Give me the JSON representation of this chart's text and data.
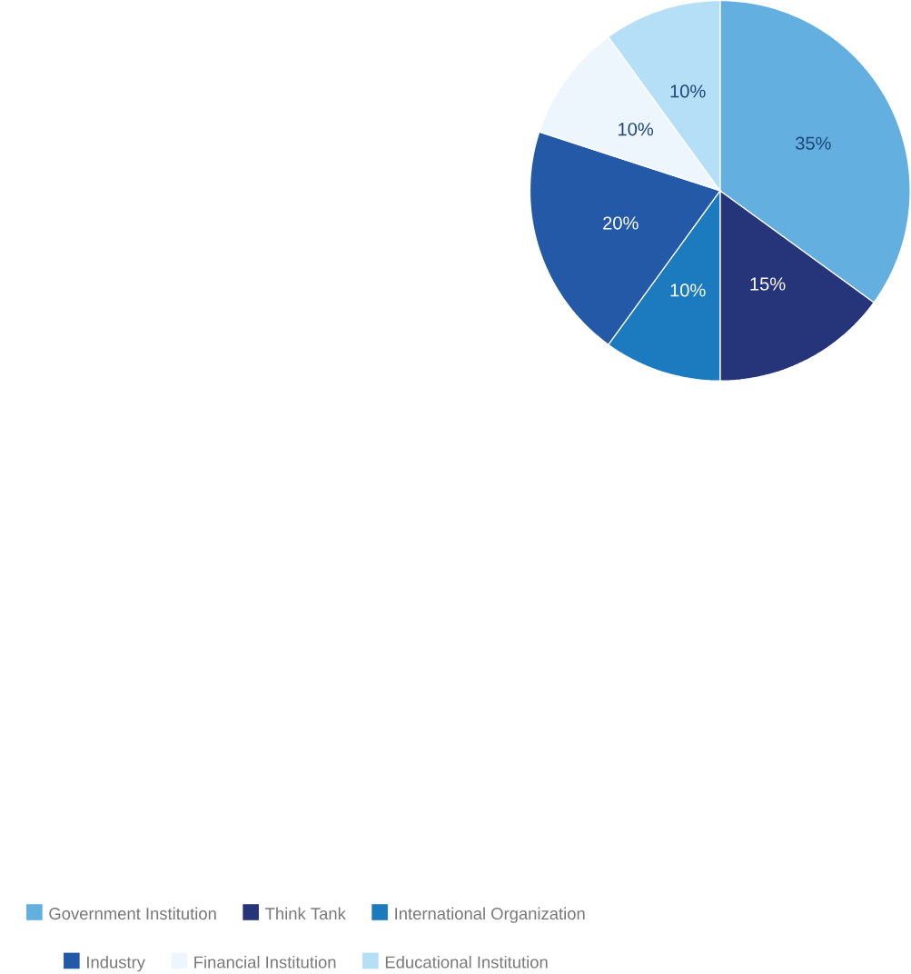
{
  "chart_data": {
    "type": "pie",
    "categories": [
      "Government Institution",
      "Think Tank",
      "International Organization",
      "Industry",
      "Financial Institution",
      "Educational Institution"
    ],
    "values": [
      35,
      15,
      10,
      20,
      10,
      10
    ],
    "value_labels": [
      "35%",
      "15%",
      "10%",
      "20%",
      "10%",
      "10%"
    ],
    "colors": [
      "#62afe0",
      "#26357a",
      "#1c7bbf",
      "#2459a8",
      "#eef6fd",
      "#b5dff7"
    ],
    "legend": "bottom"
  }
}
